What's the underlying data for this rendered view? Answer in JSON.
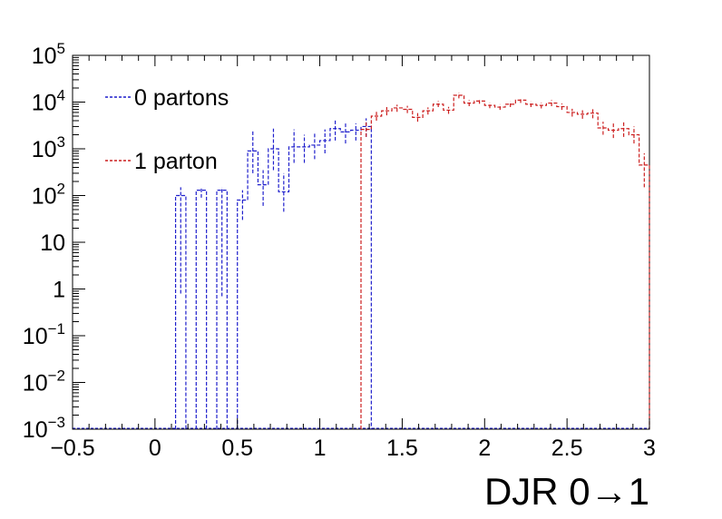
{
  "chart_data": {
    "type": "histogram",
    "xlabel": "DJR 0→1",
    "xlim": [
      -0.5,
      3.0
    ],
    "ylim": [
      0.001,
      100000
    ],
    "yscale": "log",
    "x_bin_width": 0.0625,
    "x_ticks": [
      {
        "value": -0.5,
        "label": "−0.5"
      },
      {
        "value": 0,
        "label": "0"
      },
      {
        "value": 0.5,
        "label": "0.5"
      },
      {
        "value": 1,
        "label": "1"
      },
      {
        "value": 1.5,
        "label": "1.5"
      },
      {
        "value": 2,
        "label": "2"
      },
      {
        "value": 2.5,
        "label": "2.5"
      },
      {
        "value": 3,
        "label": "3"
      }
    ],
    "y_ticks": [
      {
        "value": 0.001,
        "base": "10",
        "exp": "−3"
      },
      {
        "value": 0.01,
        "base": "10",
        "exp": "−2"
      },
      {
        "value": 0.1,
        "base": "10",
        "exp": "−1"
      },
      {
        "value": 1,
        "base": "1",
        "exp": ""
      },
      {
        "value": 10,
        "base": "10",
        "exp": ""
      },
      {
        "value": 100,
        "base": "10",
        "exp": "2"
      },
      {
        "value": 1000,
        "base": "10",
        "exp": "3"
      },
      {
        "value": 10000,
        "base": "10",
        "exp": "4"
      },
      {
        "value": 100000,
        "base": "10",
        "exp": "5"
      }
    ],
    "legend_position": "top-left",
    "series": [
      {
        "name": "0 partons",
        "color": "#1f1fcc",
        "bins": [
          {
            "x0": 0.125,
            "x1": 0.1875,
            "y": 100,
            "err_lo": 0.8,
            "err_hi": 150
          },
          {
            "x0": 0.25,
            "x1": 0.3125,
            "y": 130,
            "err_lo": 90,
            "err_hi": 150
          },
          {
            "x0": 0.375,
            "x1": 0.4375,
            "y": 130,
            "err_lo": 0.7,
            "err_hi": 150
          },
          {
            "x0": 0.5,
            "x1": 0.5625,
            "y": 80,
            "err_lo": 30,
            "err_hi": 130
          },
          {
            "x0": 0.5625,
            "x1": 0.625,
            "y": 900,
            "err_lo": 300,
            "err_hi": 2500
          },
          {
            "x0": 0.625,
            "x1": 0.6875,
            "y": 170,
            "err_lo": 60,
            "err_hi": 350
          },
          {
            "x0": 0.6875,
            "x1": 0.75,
            "y": 1000,
            "err_lo": 350,
            "err_hi": 2700
          },
          {
            "x0": 0.75,
            "x1": 0.8125,
            "y": 120,
            "err_lo": 45,
            "err_hi": 300
          },
          {
            "x0": 0.8125,
            "x1": 0.875,
            "y": 1100,
            "err_lo": 500,
            "err_hi": 2600
          },
          {
            "x0": 0.875,
            "x1": 0.9375,
            "y": 1100,
            "err_lo": 500,
            "err_hi": 2000
          },
          {
            "x0": 0.9375,
            "x1": 1.0,
            "y": 1200,
            "err_lo": 600,
            "err_hi": 2200
          },
          {
            "x0": 1.0,
            "x1": 1.0625,
            "y": 1500,
            "err_lo": 800,
            "err_hi": 2600
          },
          {
            "x0": 1.0625,
            "x1": 1.125,
            "y": 2700,
            "err_lo": 1500,
            "err_hi": 4200
          },
          {
            "x0": 1.125,
            "x1": 1.1875,
            "y": 2300,
            "err_lo": 1300,
            "err_hi": 3500
          },
          {
            "x0": 1.1875,
            "x1": 1.25,
            "y": 2500,
            "err_lo": 1500,
            "err_hi": 3500
          },
          {
            "x0": 1.25,
            "x1": 1.3125,
            "y": 3000,
            "err_lo": 1800,
            "err_hi": 4500
          }
        ]
      },
      {
        "name": "1 parton",
        "color": "#cc1f1f",
        "bins": [
          {
            "x0": 1.25,
            "x1": 1.3125,
            "y": 2600,
            "err_lo": 1800,
            "err_hi": 4000
          },
          {
            "x0": 1.3125,
            "x1": 1.375,
            "y": 5000,
            "err_lo": 4000,
            "err_hi": 6200
          },
          {
            "x0": 1.375,
            "x1": 1.4375,
            "y": 6500,
            "err_lo": 5200,
            "err_hi": 7800
          },
          {
            "x0": 1.4375,
            "x1": 1.5,
            "y": 7500,
            "err_lo": 6200,
            "err_hi": 8800
          },
          {
            "x0": 1.5,
            "x1": 1.5625,
            "y": 7000,
            "err_lo": 5800,
            "err_hi": 8300
          },
          {
            "x0": 1.5625,
            "x1": 1.625,
            "y": 4700,
            "err_lo": 3800,
            "err_hi": 5800
          },
          {
            "x0": 1.625,
            "x1": 1.6875,
            "y": 6500,
            "err_lo": 5400,
            "err_hi": 7700
          },
          {
            "x0": 1.6875,
            "x1": 1.75,
            "y": 9000,
            "err_lo": 7800,
            "err_hi": 10500
          },
          {
            "x0": 1.75,
            "x1": 1.8125,
            "y": 6700,
            "err_lo": 5600,
            "err_hi": 7900
          },
          {
            "x0": 1.8125,
            "x1": 1.875,
            "y": 14000,
            "err_lo": 12000,
            "err_hi": 16000
          },
          {
            "x0": 1.875,
            "x1": 1.9375,
            "y": 9500,
            "err_lo": 8200,
            "err_hi": 11000
          },
          {
            "x0": 1.9375,
            "x1": 2.0,
            "y": 10500,
            "err_lo": 9200,
            "err_hi": 12000
          },
          {
            "x0": 2.0,
            "x1": 2.0625,
            "y": 8500,
            "err_lo": 7400,
            "err_hi": 9800
          },
          {
            "x0": 2.0625,
            "x1": 2.125,
            "y": 7800,
            "err_lo": 6800,
            "err_hi": 9000
          },
          {
            "x0": 2.125,
            "x1": 2.1875,
            "y": 9000,
            "err_lo": 7800,
            "err_hi": 10300
          },
          {
            "x0": 2.1875,
            "x1": 2.25,
            "y": 11000,
            "err_lo": 9600,
            "err_hi": 12500
          },
          {
            "x0": 2.25,
            "x1": 2.3125,
            "y": 9000,
            "err_lo": 7800,
            "err_hi": 10300
          },
          {
            "x0": 2.3125,
            "x1": 2.375,
            "y": 8500,
            "err_lo": 7300,
            "err_hi": 9800
          },
          {
            "x0": 2.375,
            "x1": 2.4375,
            "y": 9500,
            "err_lo": 8200,
            "err_hi": 11000
          },
          {
            "x0": 2.4375,
            "x1": 2.5,
            "y": 8000,
            "err_lo": 6800,
            "err_hi": 9300
          },
          {
            "x0": 2.5,
            "x1": 2.5625,
            "y": 6000,
            "err_lo": 4900,
            "err_hi": 7200
          },
          {
            "x0": 2.5625,
            "x1": 2.625,
            "y": 5500,
            "err_lo": 4400,
            "err_hi": 6700
          },
          {
            "x0": 2.625,
            "x1": 2.6875,
            "y": 5800,
            "err_lo": 4500,
            "err_hi": 7300
          },
          {
            "x0": 2.6875,
            "x1": 2.75,
            "y": 2800,
            "err_lo": 2000,
            "err_hi": 3800
          },
          {
            "x0": 2.75,
            "x1": 2.8125,
            "y": 2500,
            "err_lo": 1700,
            "err_hi": 3500
          },
          {
            "x0": 2.8125,
            "x1": 2.875,
            "y": 2700,
            "err_lo": 1800,
            "err_hi": 3800
          },
          {
            "x0": 2.875,
            "x1": 2.9375,
            "y": 2000,
            "err_lo": 1300,
            "err_hi": 3000
          },
          {
            "x0": 2.9375,
            "x1": 3.0,
            "y": 450,
            "err_lo": 150,
            "err_hi": 800
          }
        ]
      }
    ]
  }
}
